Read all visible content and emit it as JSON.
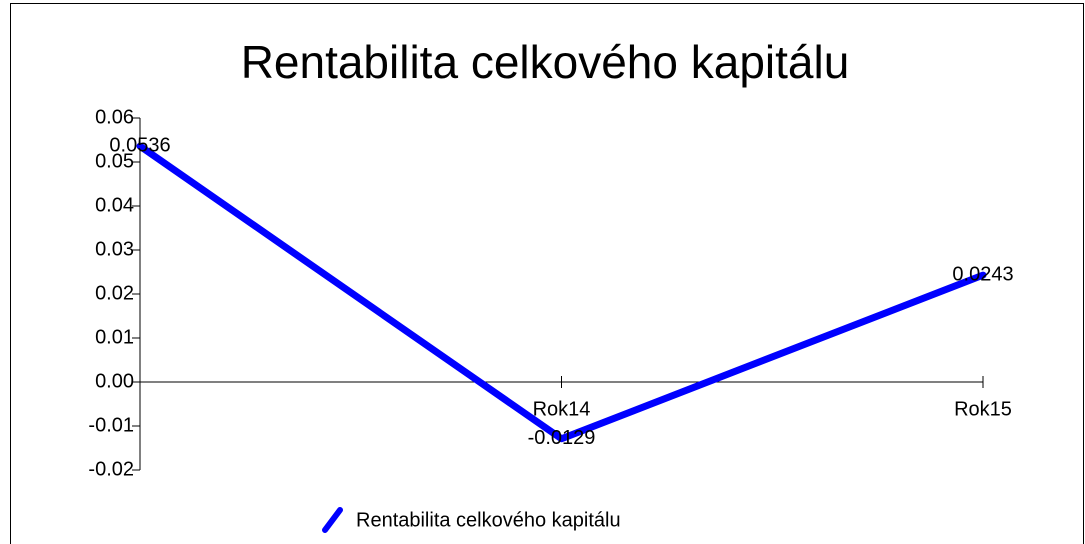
{
  "chart_data": {
    "type": "line",
    "title": "Rentabilita celkového kapitálu",
    "categories": [
      null,
      "Rok14",
      "Rok15"
    ],
    "series": [
      {
        "name": "Rentabilita celkového kapitálu",
        "color": "#0000ff",
        "values": [
          0.0536,
          -0.0129,
          0.0243
        ]
      }
    ],
    "ylim": [
      -0.02,
      0.06
    ],
    "yticks": [
      -0.02,
      -0.01,
      {
        "value": 0,
        "label": "0.00"
      },
      0.01,
      0.02,
      0.03,
      0.04,
      0.05,
      0.06
    ],
    "legend": "bottom"
  }
}
